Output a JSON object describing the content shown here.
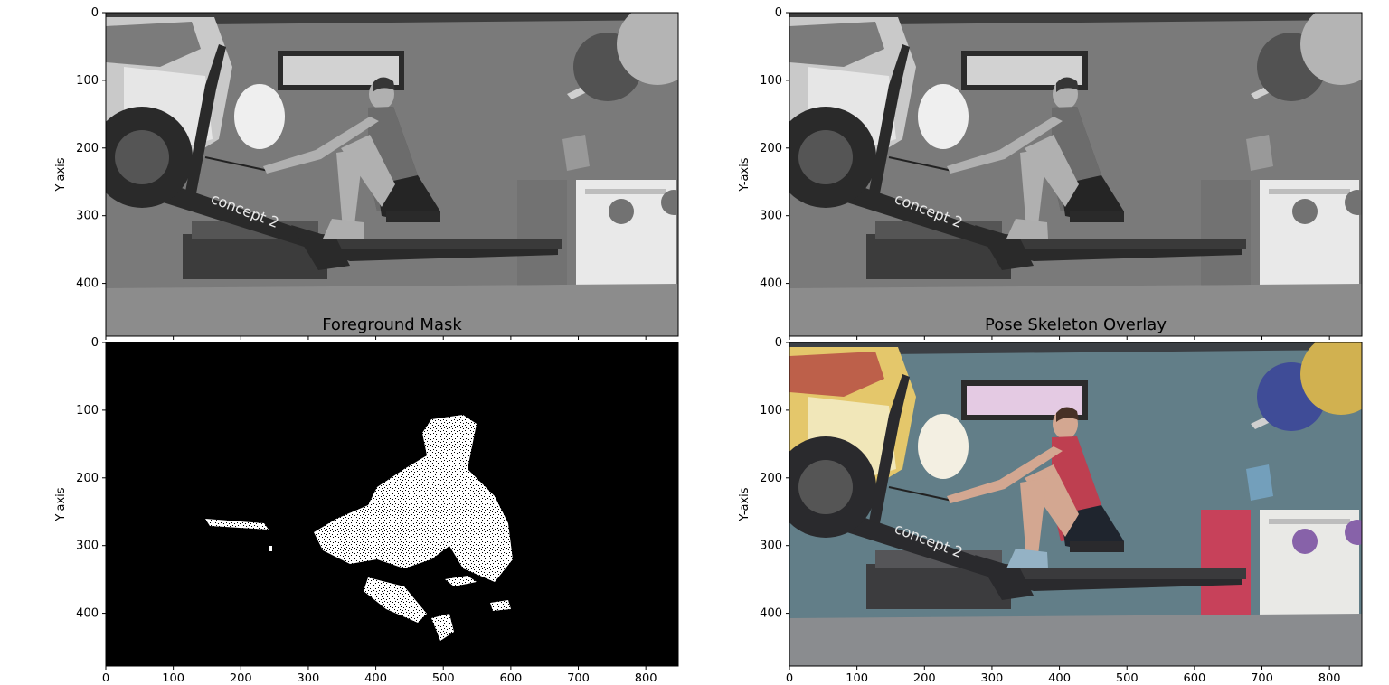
{
  "figure": {
    "background": "#ffffff",
    "panels": [
      {
        "id": "p1",
        "title": "",
        "xlabel": "",
        "ylabel": "Y-axis",
        "mode": "gray",
        "show_xticks": false
      },
      {
        "id": "p2",
        "title": "",
        "xlabel": "",
        "ylabel": "Y-axis",
        "mode": "gray",
        "show_xticks": false
      },
      {
        "id": "p3",
        "title": "Foreground Mask",
        "xlabel": "",
        "ylabel": "Y-axis",
        "mode": "mask",
        "show_xticks": true
      },
      {
        "id": "p4",
        "title": "Pose Skeleton Overlay",
        "xlabel": "",
        "ylabel": "Y-axis",
        "mode": "color",
        "show_xticks": true
      }
    ]
  },
  "chart_data": [
    {
      "type": "heatmap",
      "title": "",
      "ylabel": "Y-axis",
      "xlim": [
        0,
        848
      ],
      "ylim": [
        478,
        0
      ],
      "xticks": [
        0,
        100,
        200,
        300,
        400,
        500,
        600,
        700,
        800
      ],
      "yticks": [
        0,
        100,
        200,
        300,
        400
      ],
      "image": "grayscale video frame of a woman on a rowing machine"
    },
    {
      "type": "heatmap",
      "title": "",
      "ylabel": "Y-axis",
      "xlim": [
        0,
        848
      ],
      "ylim": [
        478,
        0
      ],
      "xticks": [
        0,
        100,
        200,
        300,
        400,
        500,
        600,
        700,
        800
      ],
      "yticks": [
        0,
        100,
        200,
        300,
        400
      ],
      "image": "grayscale video frame of a woman on a rowing machine"
    },
    {
      "type": "heatmap",
      "title": "Foreground Mask",
      "ylabel": "Y-axis",
      "xlim": [
        0,
        848
      ],
      "ylim": [
        478,
        0
      ],
      "xticks": [
        0,
        100,
        200,
        300,
        400,
        500,
        600,
        700,
        800
      ],
      "yticks": [
        0,
        100,
        200,
        300,
        400
      ],
      "image": "binary foreground mask (white rower silhouette on black)"
    },
    {
      "type": "heatmap",
      "title": "Pose Skeleton Overlay",
      "ylabel": "Y-axis",
      "xlim": [
        0,
        848
      ],
      "ylim": [
        478,
        0
      ],
      "xticks": [
        0,
        100,
        200,
        300,
        400,
        500,
        600,
        700,
        800
      ],
      "yticks": [
        0,
        100,
        200,
        300,
        400
      ],
      "image": "color video frame of a woman on a rowing machine"
    }
  ],
  "scene": {
    "wall_color": "#5d7f8a",
    "floor_color": "#8a8c90",
    "ceiling_color": "#3a3f45",
    "poster_colors": [
      "#e8c74a",
      "#f3e7b0",
      "#c65a3d"
    ],
    "ball_colors": [
      "#3b4ba0",
      "#d6b020",
      "#8a5fb0"
    ],
    "mat_color": "#d23355",
    "machine_color": "#2a2a2d",
    "top_color": "#c8324a",
    "shorts_color": "#1e2530",
    "skin_color": "#d8a58a",
    "hair_color": "#4a3022",
    "window_color": "#e7c9e6"
  }
}
